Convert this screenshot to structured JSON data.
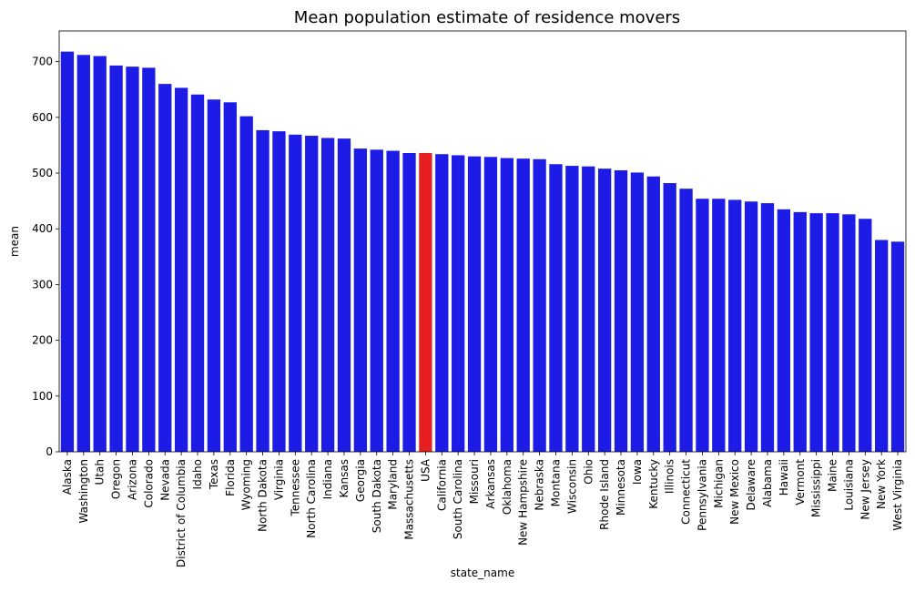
{
  "chart_data": {
    "type": "bar",
    "title": "Mean population estimate of residence movers",
    "xlabel": "state_name",
    "ylabel": "mean",
    "ylim": [
      0,
      755
    ],
    "yticks": [
      0,
      100,
      200,
      300,
      400,
      500,
      600,
      700
    ],
    "grid": false,
    "bar_color": "#1c1ce6",
    "highlight_color": "#e62020",
    "highlight_category": "USA",
    "categories": [
      "Alaska",
      "Washington",
      "Utah",
      "Oregon",
      "Arizona",
      "Colorado",
      "Nevada",
      "District of Columbia",
      "Idaho",
      "Texas",
      "Florida",
      "Wyoming",
      "North Dakota",
      "Virginia",
      "Tennessee",
      "North Carolina",
      "Indiana",
      "Kansas",
      "Georgia",
      "South Dakota",
      "Maryland",
      "Massachusetts",
      "USA",
      "California",
      "South Carolina",
      "Missouri",
      "Arkansas",
      "Oklahoma",
      "New Hampshire",
      "Nebraska",
      "Montana",
      "Wisconsin",
      "Ohio",
      "Rhode Island",
      "Minnesota",
      "Iowa",
      "Kentucky",
      "Illinois",
      "Connecticut",
      "Pennsylvania",
      "Michigan",
      "New Mexico",
      "Delaware",
      "Alabama",
      "Hawaii",
      "Vermont",
      "Mississippi",
      "Maine",
      "Louisiana",
      "New Jersey",
      "New York",
      "West Virginia"
    ],
    "values": [
      718,
      712,
      710,
      693,
      691,
      689,
      660,
      653,
      641,
      632,
      627,
      602,
      577,
      575,
      569,
      567,
      563,
      562,
      544,
      542,
      540,
      536,
      536,
      534,
      532,
      530,
      529,
      527,
      526,
      525,
      516,
      513,
      512,
      508,
      505,
      501,
      494,
      482,
      472,
      454,
      454,
      452,
      449,
      446,
      435,
      430,
      428,
      428,
      426,
      418,
      380,
      377
    ]
  }
}
